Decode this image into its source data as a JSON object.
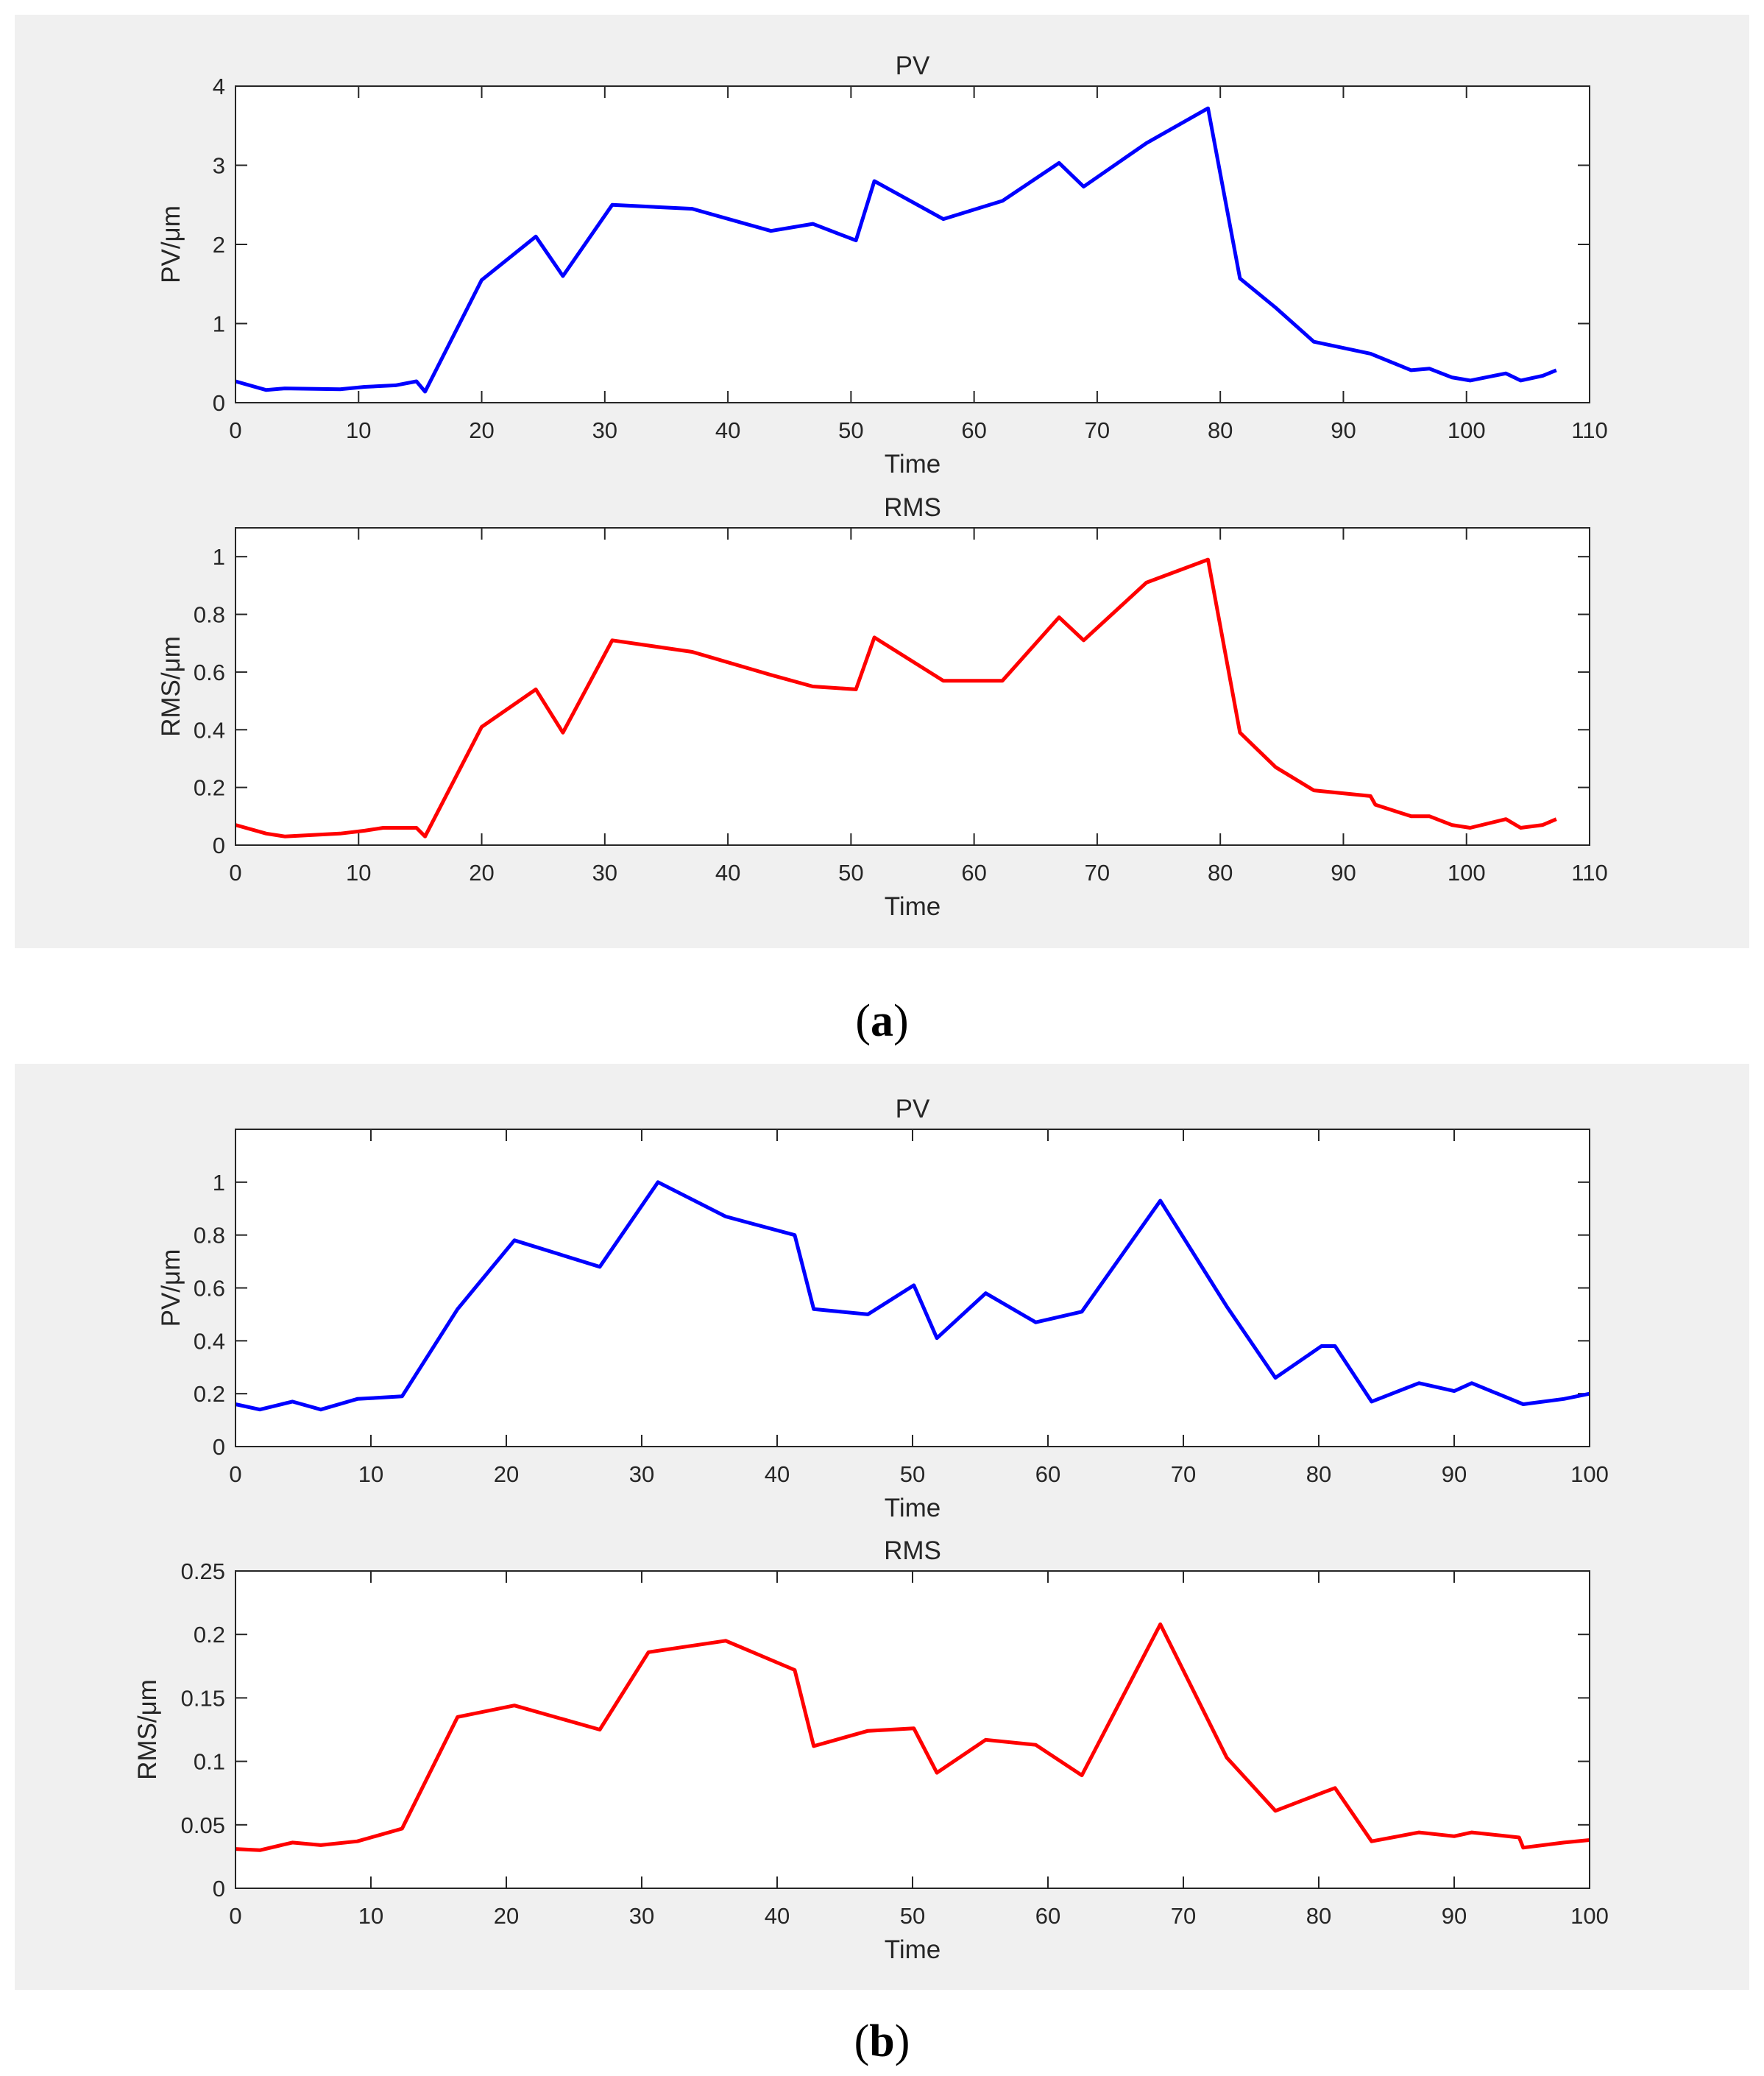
{
  "figure": {
    "panel_a_label": "a",
    "panel_b_label": "b",
    "colors": {
      "pv": "#0000ff",
      "rms": "#ff0000",
      "panel_bg": "#f0f0f0",
      "axes": "#262626",
      "grid": "#000000"
    }
  },
  "chart_data": [
    {
      "panel": "a",
      "type": "line",
      "title": "PV",
      "xlabel": "Time",
      "ylabel": "PV/μm",
      "xlim": [
        0,
        110
      ],
      "ylim": [
        0,
        4
      ],
      "xticks": [
        0,
        10,
        20,
        30,
        40,
        50,
        60,
        70,
        80,
        90,
        100,
        110
      ],
      "yticks": [
        0,
        1,
        2,
        3,
        4
      ],
      "ytick_labels": [
        "0",
        "1",
        "2",
        "3",
        "4"
      ],
      "series": [
        {
          "name": "PV",
          "color": "#0000ff",
          "x": [
            0,
            2.5,
            4,
            8.5,
            10.5,
            13,
            14.7,
            15.4,
            20,
            24.4,
            26.6,
            30.6,
            37.1,
            43.5,
            46.9,
            50.4,
            51.9,
            57.5,
            62.3,
            66.9,
            68.9,
            74,
            79,
            81.6,
            84.5,
            87.6,
            92.2,
            95.5,
            97,
            98.8,
            100.3,
            103.2,
            104.4,
            106.2,
            107.3
          ],
          "y": [
            0.27,
            0.16,
            0.18,
            0.17,
            0.2,
            0.22,
            0.27,
            0.14,
            1.55,
            2.1,
            1.6,
            2.5,
            2.45,
            2.17,
            2.26,
            2.05,
            2.8,
            2.32,
            2.55,
            3.03,
            2.73,
            3.28,
            3.72,
            1.57,
            1.2,
            0.77,
            0.62,
            0.41,
            0.43,
            0.32,
            0.28,
            0.37,
            0.28,
            0.34,
            0.41
          ]
        }
      ]
    },
    {
      "panel": "a",
      "type": "line",
      "title": "RMS",
      "xlabel": "Time",
      "ylabel": "RMS/μm",
      "xlim": [
        0,
        110
      ],
      "ylim": [
        0,
        1.1
      ],
      "xticks": [
        0,
        10,
        20,
        30,
        40,
        50,
        60,
        70,
        80,
        90,
        100,
        110
      ],
      "yticks": [
        0,
        0.2,
        0.4,
        0.6,
        0.8,
        1
      ],
      "ytick_labels": [
        "0",
        "0.2",
        "0.4",
        "0.6",
        "0.8",
        "1"
      ],
      "series": [
        {
          "name": "RMS",
          "color": "#ff0000",
          "x": [
            0,
            2.5,
            4,
            8.5,
            10.5,
            12,
            14.7,
            15.4,
            20,
            24.4,
            26.6,
            30.6,
            37.1,
            43.5,
            46.9,
            50.4,
            51.9,
            57.5,
            62.3,
            66.9,
            68.9,
            74,
            79,
            81.6,
            84.5,
            87.6,
            92.2,
            92.6,
            95.5,
            97,
            98.8,
            100.3,
            103.2,
            104.4,
            106.2,
            107.3
          ],
          "y": [
            0.07,
            0.04,
            0.03,
            0.04,
            0.05,
            0.06,
            0.06,
            0.03,
            0.41,
            0.54,
            0.39,
            0.71,
            0.67,
            0.59,
            0.55,
            0.54,
            0.72,
            0.57,
            0.57,
            0.79,
            0.71,
            0.91,
            0.99,
            0.39,
            0.27,
            0.19,
            0.17,
            0.14,
            0.1,
            0.1,
            0.07,
            0.06,
            0.09,
            0.06,
            0.07,
            0.09
          ]
        }
      ]
    },
    {
      "panel": "b",
      "type": "line",
      "title": "PV",
      "xlabel": "Time",
      "ylabel": "PV/μm",
      "xlim": [
        0,
        100
      ],
      "ylim": [
        0,
        1.2
      ],
      "xticks": [
        0,
        10,
        20,
        30,
        40,
        50,
        60,
        70,
        80,
        90,
        100
      ],
      "yticks": [
        0,
        0.2,
        0.4,
        0.6,
        0.8,
        1
      ],
      "ytick_labels": [
        "0",
        "0.2",
        "0.4",
        "0.6",
        "0.8",
        "1"
      ],
      "series": [
        {
          "name": "PV",
          "color": "#0000ff",
          "x": [
            0,
            1.8,
            4.2,
            6.3,
            9,
            12.3,
            16.4,
            20.6,
            26.9,
            31.2,
            36.2,
            41.3,
            42.7,
            46.7,
            50.1,
            51.8,
            55.4,
            59.1,
            62.5,
            68.3,
            73.2,
            76.8,
            80.2,
            81.2,
            83.9,
            87.4,
            90,
            91.3,
            95.1,
            98.1,
            100
          ],
          "y": [
            0.16,
            0.14,
            0.17,
            0.14,
            0.18,
            0.19,
            0.52,
            0.78,
            0.68,
            1.0,
            0.87,
            0.8,
            0.52,
            0.5,
            0.61,
            0.41,
            0.58,
            0.47,
            0.51,
            0.93,
            0.53,
            0.26,
            0.38,
            0.38,
            0.17,
            0.24,
            0.21,
            0.24,
            0.16,
            0.18,
            0.2
          ]
        }
      ]
    },
    {
      "panel": "b",
      "type": "line",
      "title": "RMS",
      "xlabel": "Time",
      "ylabel": "RMS/μm",
      "xlim": [
        0,
        100
      ],
      "ylim": [
        0,
        0.25
      ],
      "xticks": [
        0,
        10,
        20,
        30,
        40,
        50,
        60,
        70,
        80,
        90,
        100
      ],
      "yticks": [
        0,
        0.05,
        0.1,
        0.15,
        0.2,
        0.25
      ],
      "ytick_labels": [
        "0",
        "0.05",
        "0.1",
        "0.15",
        "0.2",
        "0.25"
      ],
      "series": [
        {
          "name": "RMS",
          "color": "#ff0000",
          "x": [
            0,
            1.8,
            4.2,
            6.3,
            9,
            12.3,
            16.4,
            20.6,
            26.9,
            30.5,
            36.2,
            41.3,
            42.7,
            46.7,
            50.1,
            51.8,
            55.4,
            59.1,
            62.5,
            68.3,
            73.2,
            76.8,
            80.2,
            81.2,
            83.9,
            87.4,
            90,
            91.3,
            94.8,
            95.1,
            98.1,
            100
          ],
          "y": [
            0.031,
            0.03,
            0.036,
            0.034,
            0.037,
            0.047,
            0.135,
            0.144,
            0.125,
            0.186,
            0.195,
            0.172,
            0.112,
            0.124,
            0.126,
            0.091,
            0.117,
            0.113,
            0.089,
            0.208,
            0.103,
            0.061,
            0.075,
            0.079,
            0.037,
            0.044,
            0.041,
            0.044,
            0.04,
            0.032,
            0.036,
            0.038
          ]
        }
      ]
    }
  ]
}
